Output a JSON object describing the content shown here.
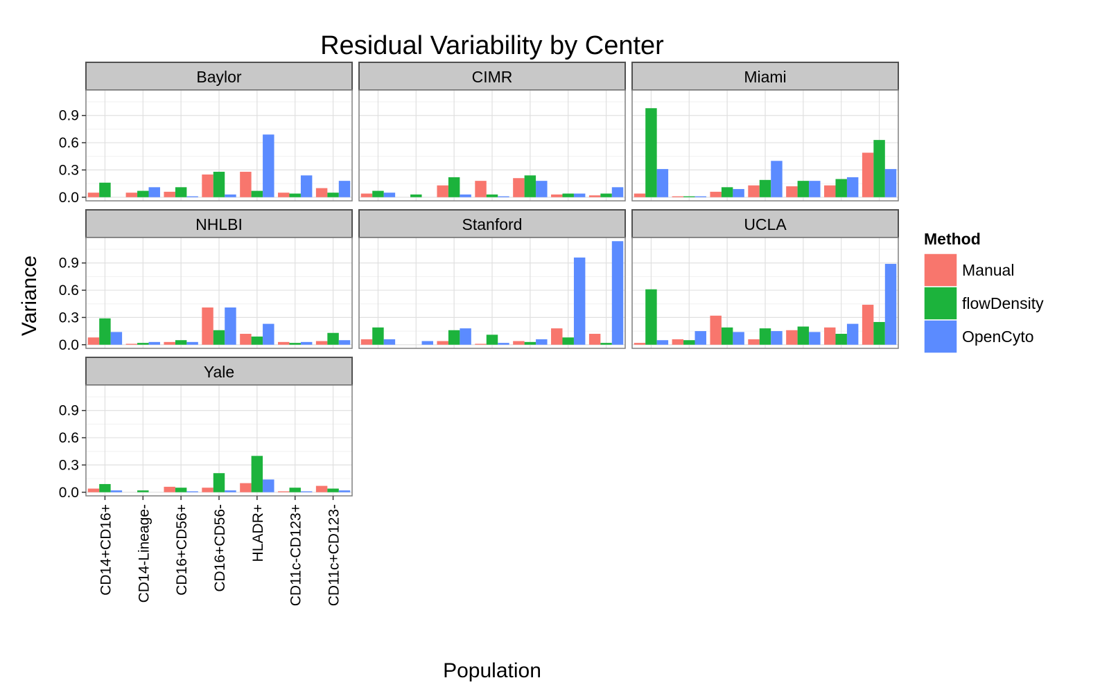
{
  "chart_data": {
    "type": "bar",
    "title": "Residual Variability by Center",
    "xlabel": "Population",
    "ylabel": "Variance",
    "ylim": [
      -0.04,
      1.18
    ],
    "yticks": [
      0.0,
      0.3,
      0.6,
      0.9
    ],
    "ytick_labels": [
      "0.0",
      "0.3",
      "0.6",
      "0.9"
    ],
    "grid": true,
    "legend_position": "right",
    "legend_title": "Method",
    "categories": [
      "CD14+CD16+",
      "CD14-Lineage-",
      "CD16+CD56+",
      "CD16+CD56-",
      "HLADR+",
      "CD11c-CD123+",
      "CD11c+CD123-"
    ],
    "methods": [
      {
        "name": "Manual",
        "color": "#F8766D"
      },
      {
        "name": "flowDensity",
        "color": "#1CB33C"
      },
      {
        "name": "OpenCyto",
        "color": "#5B8BFF"
      }
    ],
    "panels": [
      {
        "name": "Baylor",
        "series": [
          {
            "name": "Manual",
            "values": [
              0.05,
              0.05,
              0.06,
              0.25,
              0.28,
              0.05,
              0.1
            ]
          },
          {
            "name": "flowDensity",
            "values": [
              0.16,
              0.07,
              0.11,
              0.28,
              0.07,
              0.04,
              0.05
            ]
          },
          {
            "name": "OpenCyto",
            "values": [
              0.0,
              0.11,
              0.01,
              0.03,
              0.69,
              0.24,
              0.18
            ]
          }
        ]
      },
      {
        "name": "CIMR",
        "series": [
          {
            "name": "Manual",
            "values": [
              0.04,
              0.0,
              0.13,
              0.18,
              0.21,
              0.03,
              0.02
            ]
          },
          {
            "name": "flowDensity",
            "values": [
              0.07,
              0.03,
              0.22,
              0.03,
              0.24,
              0.04,
              0.04
            ]
          },
          {
            "name": "OpenCyto",
            "values": [
              0.05,
              0.0,
              0.03,
              0.01,
              0.18,
              0.04,
              0.11
            ]
          }
        ]
      },
      {
        "name": "Miami",
        "series": [
          {
            "name": "Manual",
            "values": [
              0.04,
              0.01,
              0.06,
              0.13,
              0.12,
              0.13,
              0.49
            ]
          },
          {
            "name": "flowDensity",
            "values": [
              0.98,
              0.01,
              0.11,
              0.19,
              0.18,
              0.2,
              0.63
            ]
          },
          {
            "name": "OpenCyto",
            "values": [
              0.31,
              0.01,
              0.09,
              0.4,
              0.18,
              0.22,
              0.31
            ]
          }
        ]
      },
      {
        "name": "NHLBI",
        "series": [
          {
            "name": "Manual",
            "values": [
              0.08,
              0.01,
              0.03,
              0.41,
              0.12,
              0.03,
              0.04
            ]
          },
          {
            "name": "flowDensity",
            "values": [
              0.29,
              0.02,
              0.05,
              0.16,
              0.09,
              0.02,
              0.13
            ]
          },
          {
            "name": "OpenCyto",
            "values": [
              0.14,
              0.03,
              0.03,
              0.41,
              0.23,
              0.03,
              0.05
            ]
          }
        ]
      },
      {
        "name": "Stanford",
        "series": [
          {
            "name": "Manual",
            "values": [
              0.06,
              0.0,
              0.04,
              0.01,
              0.04,
              0.18,
              0.12
            ]
          },
          {
            "name": "flowDensity",
            "values": [
              0.19,
              0.0,
              0.16,
              0.11,
              0.03,
              0.08,
              0.02
            ]
          },
          {
            "name": "OpenCyto",
            "values": [
              0.06,
              0.04,
              0.18,
              0.02,
              0.06,
              0.96,
              1.14
            ]
          }
        ]
      },
      {
        "name": "UCLA",
        "series": [
          {
            "name": "Manual",
            "values": [
              0.02,
              0.06,
              0.32,
              0.06,
              0.16,
              0.19,
              0.44
            ]
          },
          {
            "name": "flowDensity",
            "values": [
              0.61,
              0.05,
              0.19,
              0.18,
              0.2,
              0.12,
              0.25
            ]
          },
          {
            "name": "OpenCyto",
            "values": [
              0.05,
              0.15,
              0.14,
              0.15,
              0.14,
              0.23,
              0.89
            ]
          }
        ]
      },
      {
        "name": "Yale",
        "series": [
          {
            "name": "Manual",
            "values": [
              0.04,
              0.0,
              0.06,
              0.05,
              0.1,
              0.01,
              0.07
            ]
          },
          {
            "name": "flowDensity",
            "values": [
              0.09,
              0.02,
              0.05,
              0.21,
              0.4,
              0.05,
              0.04
            ]
          },
          {
            "name": "OpenCyto",
            "values": [
              0.02,
              0.0,
              0.01,
              0.02,
              0.14,
              0.01,
              0.02
            ]
          }
        ]
      }
    ]
  }
}
